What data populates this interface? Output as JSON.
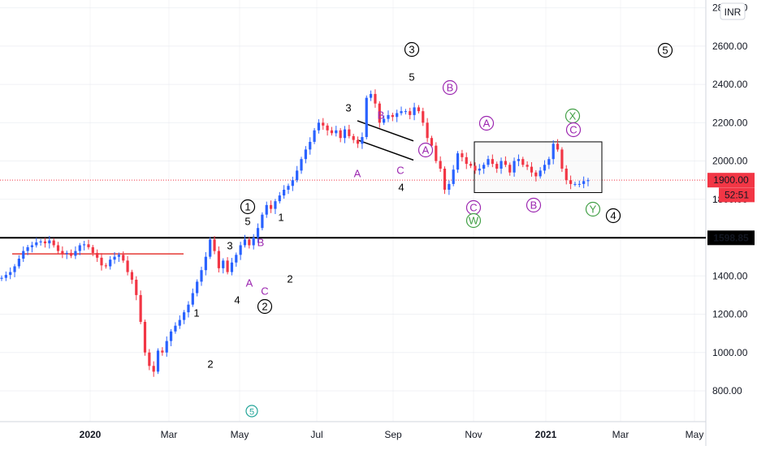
{
  "chart_data": {
    "type": "candlestick",
    "currency_badge": "INR",
    "y_axis": {
      "tick_labels": [
        "2800.00",
        "2600.00",
        "2400.00",
        "2200.00",
        "2000.00",
        "1800.00",
        "1600.00",
        "1400.00",
        "1200.00",
        "1000.00",
        "800.00"
      ],
      "tick_values": [
        2800,
        2600,
        2400,
        2200,
        2000,
        1800,
        1600,
        1400,
        1200,
        1000,
        800
      ],
      "ylim": [
        670,
        2830
      ]
    },
    "x_axis": {
      "tick_labels": [
        "2020",
        "Mar",
        "May",
        "Jul",
        "Sep",
        "Nov",
        "2021",
        "Mar",
        "May"
      ],
      "bold": [
        true,
        false,
        false,
        false,
        false,
        false,
        true,
        false,
        false
      ]
    },
    "price_markers": [
      {
        "label": "1900.00",
        "value": 1900,
        "style": "last-price",
        "color": "#f23645"
      },
      {
        "label": "52:51",
        "value": 1840,
        "style": "countdown",
        "color": "#f23645"
      },
      {
        "label": "1598.85",
        "value": 1598.85,
        "style": "support",
        "color": "#000000"
      }
    ],
    "cut_off_label": "1",
    "horizontal_levels": [
      {
        "value": 1598.85,
        "color": "#000000",
        "note": "support line"
      },
      {
        "value": 1515,
        "color": "#e53935",
        "note": "short resistance line"
      }
    ],
    "range_box": {
      "top": 2100,
      "bottom": 1835
    },
    "channel": {
      "upper": [
        2210,
        2105
      ],
      "lower": [
        2110,
        2005
      ]
    },
    "series_close": [
      1390,
      1405,
      1420,
      1450,
      1490,
      1530,
      1550,
      1560,
      1575,
      1580,
      1570,
      1585,
      1560,
      1530,
      1515,
      1520,
      1505,
      1530,
      1560,
      1565,
      1550,
      1520,
      1495,
      1455,
      1450,
      1485,
      1500,
      1510,
      1480,
      1420,
      1380,
      1300,
      1160,
      1000,
      930,
      900,
      1010,
      1000,
      1060,
      1110,
      1140,
      1170,
      1210,
      1250,
      1310,
      1370,
      1430,
      1500,
      1590,
      1530,
      1440,
      1480,
      1420,
      1470,
      1510,
      1560,
      1590,
      1560,
      1600,
      1650,
      1720,
      1770,
      1750,
      1790,
      1820,
      1850,
      1870,
      1900,
      1950,
      2010,
      2060,
      2100,
      2160,
      2200,
      2185,
      2160,
      2145,
      2160,
      2120,
      2165,
      2130,
      2110,
      2090,
      2125,
      2330,
      2350,
      2300,
      2200,
      2220,
      2240,
      2230,
      2250,
      2260,
      2260,
      2240,
      2280,
      2260,
      2200,
      2120,
      2080,
      2000,
      1960,
      1850,
      1880,
      1955,
      2040,
      2020,
      1985,
      1975,
      1950,
      1960,
      1980,
      2010,
      1985,
      1960,
      2000,
      1980,
      1940,
      2000,
      2010,
      1980,
      1970,
      1940,
      1920,
      1950,
      1980,
      2010,
      2090,
      2060,
      1960,
      1900,
      1880,
      1880,
      1880,
      1895,
      1900
    ],
    "wave_labels": [
      {
        "text": "3",
        "style": "circled",
        "color": "#000000"
      },
      {
        "text": "5",
        "style": "circled",
        "color": "#000000"
      },
      {
        "text": "5",
        "style": "plain",
        "color": "#000000"
      },
      {
        "text": "3",
        "style": "plain",
        "color": "#000000"
      },
      {
        "text": "B",
        "style": "plain",
        "color": "#9c27b0"
      },
      {
        "text": "B",
        "style": "circled",
        "color": "#9c27b0"
      },
      {
        "text": "A",
        "style": "circled",
        "color": "#9c27b0"
      },
      {
        "text": "A",
        "style": "circled",
        "color": "#9c27b0"
      },
      {
        "text": "X",
        "style": "circled",
        "color": "#43a047"
      },
      {
        "text": "C",
        "style": "circled",
        "color": "#9c27b0"
      },
      {
        "text": "A",
        "style": "plain",
        "color": "#9c27b0"
      },
      {
        "text": "C",
        "style": "plain",
        "color": "#9c27b0"
      },
      {
        "text": "4",
        "style": "plain",
        "color": "#000000"
      },
      {
        "text": "1",
        "style": "circled",
        "color": "#000000"
      },
      {
        "text": "5",
        "style": "plain",
        "color": "#000000"
      },
      {
        "text": "1",
        "style": "plain",
        "color": "#000000"
      },
      {
        "text": "C",
        "style": "circled",
        "color": "#9c27b0"
      },
      {
        "text": "W",
        "style": "circled",
        "color": "#43a047"
      },
      {
        "text": "B",
        "style": "circled",
        "color": "#9c27b0"
      },
      {
        "text": "Y",
        "style": "circled",
        "color": "#43a047"
      },
      {
        "text": "4",
        "style": "circled",
        "color": "#000000"
      },
      {
        "text": "3",
        "style": "plain",
        "color": "#000000"
      },
      {
        "text": "B",
        "style": "plain",
        "color": "#9c27b0"
      },
      {
        "text": "2",
        "style": "plain",
        "color": "#000000"
      },
      {
        "text": "A",
        "style": "plain",
        "color": "#9c27b0"
      },
      {
        "text": "C",
        "style": "plain",
        "color": "#9c27b0"
      },
      {
        "text": "4",
        "style": "plain",
        "color": "#000000"
      },
      {
        "text": "2",
        "style": "circled",
        "color": "#000000"
      },
      {
        "text": "1",
        "style": "plain",
        "color": "#000000"
      },
      {
        "text": "2",
        "style": "plain",
        "color": "#000000"
      },
      {
        "text": "5",
        "style": "circled-small",
        "color": "#26a69a"
      }
    ],
    "colors": {
      "up": "#2962ff",
      "down": "#f23645",
      "grid": "#e0e3eb"
    }
  }
}
